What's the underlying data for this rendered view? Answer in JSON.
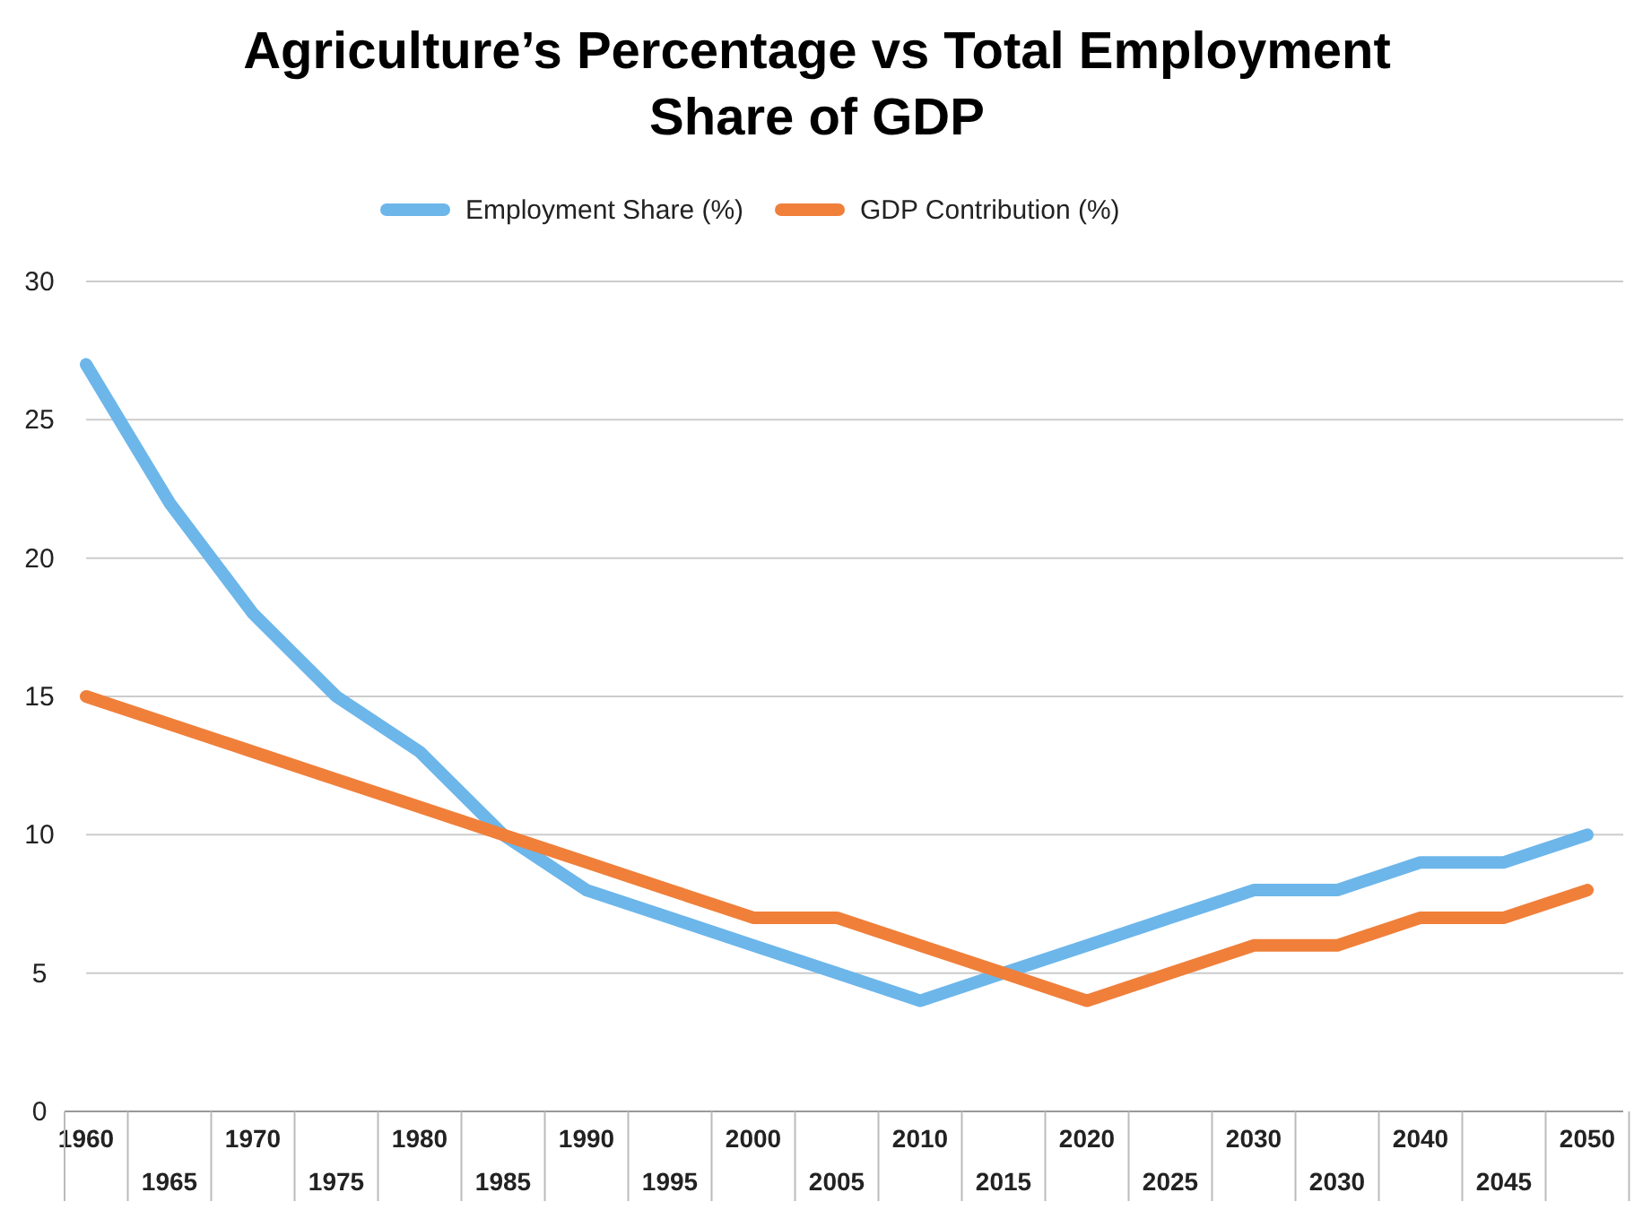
{
  "chart_data": {
    "type": "line",
    "title": "Agriculture’s Percentage vs Total Employment Share of GDP",
    "categories": [
      "1960",
      "1965",
      "1970",
      "1975",
      "1980",
      "1985",
      "1990",
      "1995",
      "2000",
      "2005",
      "2010",
      "2015",
      "2020",
      "2025",
      "2030",
      "2030",
      "2040",
      "2045",
      "2050"
    ],
    "series": [
      {
        "name": "Employment Share (%)",
        "color": "#6cb6ea",
        "values": [
          27,
          22,
          18,
          15,
          13,
          10,
          8,
          7,
          6,
          5,
          4,
          5,
          6,
          7,
          8,
          8,
          9,
          9,
          10
        ]
      },
      {
        "name": "GDP Contribution (%)",
        "color": "#f07f3a",
        "values": [
          15,
          14,
          13,
          12,
          11,
          10,
          9,
          8,
          7,
          7,
          6,
          5,
          4,
          5,
          6,
          6,
          7,
          7,
          8
        ]
      }
    ],
    "ylim": [
      0,
      30
    ],
    "yticks": [
      0,
      5,
      10,
      15,
      20,
      25,
      30
    ],
    "grid": "y",
    "legend": "top",
    "marker": "none",
    "line_style": "solid"
  }
}
